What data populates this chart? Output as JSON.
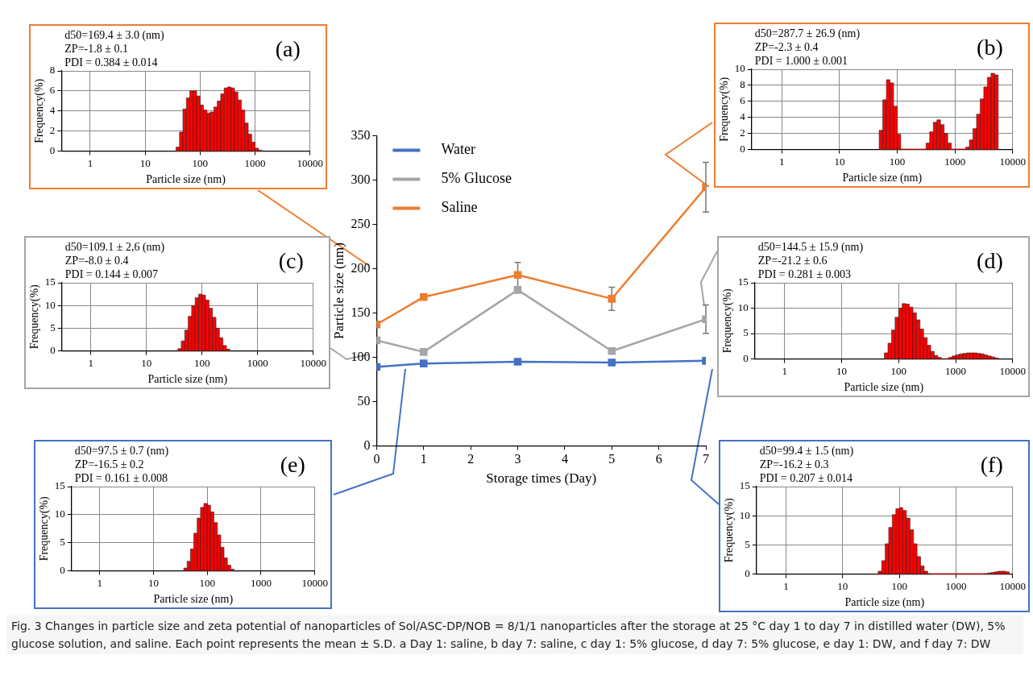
{
  "chart_data": [
    {
      "type": "line",
      "xlabel": "Storage times (Day)",
      "ylabel": "Particle size (nm)",
      "x": [
        0,
        1,
        3,
        5,
        7
      ],
      "xlim": [
        0,
        7
      ],
      "xticks": [
        0,
        1,
        2,
        3,
        4,
        5,
        6,
        7
      ],
      "ylim": [
        0,
        350
      ],
      "yticks": [
        0,
        50,
        100,
        150,
        200,
        250,
        300,
        350
      ],
      "marker": "square",
      "legend": "top left",
      "series": [
        {
          "name": "Water",
          "color": "#4472c4",
          "values": [
            89,
            93,
            95,
            94,
            96
          ]
        },
        {
          "name": "5% Glucose",
          "color": "#a5a5a5",
          "values": [
            119,
            106,
            176,
            107,
            143
          ],
          "errors": [
            null,
            null,
            null,
            null,
            16
          ]
        },
        {
          "name": "Saline",
          "color": "#ed7d31",
          "values": [
            137,
            168,
            193,
            166,
            292
          ],
          "errors": [
            null,
            null,
            14,
            13,
            28
          ]
        }
      ],
      "annotations": [
        "Fig. 3 Changes in particle size and zeta potential of nanoparticles of Sol/ASC-DP/NOB = 8/1/1 nanoparticles after the storage at 25 °C day 1 to day 7 in distilled water (DW), 5% glucose solution, and saline. Each point represents the mean ± S.D. a Day 1: saline, b day 7: saline, c day 1: 5% glucose, d day 7: 5% glucose, e day 1: DW, and f day 7: DW"
      ]
    },
    {
      "type": "histogram",
      "title": "(a)",
      "xlabel": "Particle size (nm)",
      "ylabel": "Frequency(%)",
      "color": "#ff0000",
      "log": "x",
      "grid": true,
      "xlim": [
        0.3,
        10000
      ],
      "xticks": [
        1,
        10,
        100,
        1000,
        10000
      ],
      "ylim": [
        0,
        8
      ],
      "yticks": [
        0,
        2,
        4,
        6,
        8
      ],
      "bins": [
        36.5,
        42.2,
        48.7,
        56.2,
        64.9,
        75.0,
        86.6,
        100,
        115,
        133,
        154,
        178,
        205,
        237,
        274,
        316,
        365,
        422,
        487,
        562,
        649,
        750,
        866,
        1000,
        1150,
        1330
      ],
      "values": [
        0.4,
        1.9,
        4.2,
        5.3,
        6.0,
        6.0,
        5.5,
        4.6,
        4.1,
        3.8,
        3.9,
        4.4,
        5.0,
        5.7,
        6.3,
        6.4,
        6.3,
        5.9,
        5.1,
        4.1,
        2.8,
        1.7,
        0.9,
        0.3,
        0.1
      ],
      "annotations": [
        "d50=169.4 ± 3.0 (nm)",
        "ZP=-1.8 ± 0.1",
        "PDI = 0.384 ± 0.014"
      ]
    },
    {
      "type": "histogram",
      "title": "(b)",
      "xlabel": "Particle size (nm)",
      "ylabel": "Frequency(%)",
      "color": "#ff0000",
      "log": "x",
      "grid": true,
      "xlim": [
        0.3,
        10000
      ],
      "xticks": [
        1,
        10,
        100,
        1000,
        10000
      ],
      "ylim": [
        0,
        10
      ],
      "yticks": [
        0,
        2,
        4,
        6,
        8,
        10
      ],
      "bins": [
        48.7,
        56.2,
        64.9,
        75.0,
        86.6,
        100,
        115,
        133,
        154,
        178,
        205,
        237,
        274,
        316,
        365,
        422,
        487,
        562,
        649,
        750,
        866,
        1000,
        1150,
        1330,
        1540,
        1780,
        2050,
        2370,
        2740,
        3160,
        3650,
        4220,
        4870,
        5620
      ],
      "values": [
        2.4,
        6.2,
        8.7,
        8.3,
        5.4,
        1.9,
        0,
        0,
        0,
        0,
        0,
        0,
        0,
        0.8,
        2.2,
        3.4,
        3.7,
        3.1,
        2.0,
        0.8,
        0,
        0,
        0,
        0,
        0.3,
        1.2,
        2.6,
        4.4,
        6.3,
        7.8,
        9.0,
        9.5,
        9.3
      ],
      "annotations": [
        "d50=287.7 ± 26.9 (nm)",
        "ZP=-2.3 ± 0.4",
        "PDI = 1.000 ± 0.001"
      ]
    },
    {
      "type": "histogram",
      "title": "(c)",
      "xlabel": "Particle size (nm)",
      "ylabel": "Frequency(%)",
      "color": "#ff0000",
      "log": "x",
      "grid": true,
      "xlim": [
        0.3,
        10000
      ],
      "xticks": [
        1,
        10,
        100,
        1000,
        10000
      ],
      "ylim": [
        0,
        15
      ],
      "yticks": [
        0,
        5,
        10,
        15
      ],
      "bins": [
        36.5,
        42.2,
        48.7,
        56.2,
        64.9,
        75.0,
        86.6,
        100,
        115,
        133,
        154,
        178,
        205,
        237,
        274,
        316
      ],
      "values": [
        0.5,
        2.2,
        4.6,
        7.6,
        10.0,
        11.7,
        12.5,
        12.3,
        11.2,
        9.4,
        7.4,
        5.0,
        2.9,
        1.2,
        0.4
      ],
      "annotations": [
        "d50=109.1 ± 2,6 (nm)",
        "ZP=-8.0 ± 0.4",
        "PDI = 0.144 ± 0.007"
      ]
    },
    {
      "type": "histogram",
      "title": "(d)",
      "xlabel": "Particle size (nm)",
      "ylabel": "Frequency(%)",
      "color": "#ff0000",
      "log": "x",
      "grid": true,
      "xlim": [
        0.3,
        10000
      ],
      "xticks": [
        1,
        10,
        100,
        1000,
        10000
      ],
      "ylim": [
        0,
        15
      ],
      "yticks": [
        0,
        5,
        10,
        15
      ],
      "bins": [
        56.2,
        64.9,
        75.0,
        86.6,
        100,
        115,
        133,
        154,
        178,
        205,
        237,
        274,
        316,
        365,
        422,
        487,
        562,
        649,
        750,
        866,
        1000,
        1150,
        1330,
        1540,
        1780,
        2050,
        2370,
        2740,
        3160,
        3650,
        4220,
        4870,
        5620
      ],
      "values": [
        1.2,
        3.1,
        5.7,
        8.2,
        10.0,
        10.9,
        10.8,
        10.2,
        9.1,
        7.7,
        5.9,
        4.2,
        2.7,
        1.5,
        0.7,
        0.3,
        null,
        0,
        0.3,
        0.6,
        0.8,
        1.0,
        1.1,
        1.2,
        1.2,
        1.2,
        1.1,
        1.0,
        0.8,
        0.6,
        0.4,
        0.2
      ],
      "annotations": [
        "d50=144.5 ± 15.9 (nm)",
        "ZP=-21.2 ± 0.6",
        "PDI = 0.281 ± 0.003"
      ]
    },
    {
      "type": "histogram",
      "title": "(e)",
      "xlabel": "Particle size (nm)",
      "ylabel": "Frequency(%)",
      "color": "#ff0000",
      "log": "x",
      "grid": true,
      "xlim": [
        0.3,
        10000
      ],
      "xticks": [
        1,
        10,
        100,
        1000,
        10000
      ],
      "ylim": [
        0,
        15
      ],
      "yticks": [
        0,
        5,
        10,
        15
      ],
      "bins": [
        36.5,
        42.2,
        48.7,
        56.2,
        64.9,
        75.0,
        86.6,
        100,
        115,
        133,
        154,
        178,
        205,
        237,
        274,
        316
      ],
      "values": [
        0.5,
        1.7,
        3.9,
        6.7,
        9.4,
        11.3,
        12.0,
        11.7,
        10.5,
        8.6,
        6.4,
        4.2,
        2.3,
        1.0,
        0.3
      ],
      "annotations": [
        "d50=97.5 ± 0.7 (nm)",
        "ZP=-16.5 ± 0.2",
        "PDI = 0.161 ± 0.008"
      ]
    },
    {
      "type": "histogram",
      "title": "(f)",
      "xlabel": "Particle size (nm)",
      "ylabel": "Frequency(%)",
      "color": "#ff0000",
      "log": "x",
      "grid": true,
      "xlim": [
        0.3,
        10000
      ],
      "xticks": [
        1,
        10,
        100,
        1000,
        10000
      ],
      "ylim": [
        0,
        15
      ],
      "yticks": [
        0,
        5,
        10,
        15
      ],
      "bins": [
        42.2,
        48.7,
        56.2,
        64.9,
        75.0,
        86.6,
        100,
        115,
        133,
        154,
        178,
        205,
        237,
        274,
        316,
        365,
        422,
        487,
        562,
        649,
        750,
        866,
        1000,
        1150,
        1330,
        1540,
        1780,
        2050,
        2370,
        2740,
        3160,
        3650,
        4220,
        4870,
        5620,
        6490,
        7500,
        8660
      ],
      "values": [
        0.5,
        2.3,
        5.2,
        8.0,
        10.2,
        11.2,
        11.4,
        10.9,
        9.6,
        7.6,
        5.2,
        3.0,
        1.4,
        0.5,
        0.1,
        0,
        0,
        0,
        0,
        0,
        0,
        0,
        0,
        0,
        0,
        0,
        0,
        0,
        0,
        0,
        0.1,
        0.2,
        0.3,
        0.4,
        0.5,
        0.5,
        0.4
      ],
      "annotations": [
        "d50=99.4 ± 1.5 (nm)",
        "ZP=-16.2 ± 0.3",
        "PDI = 0.207 ± 0.014"
      ]
    }
  ]
}
